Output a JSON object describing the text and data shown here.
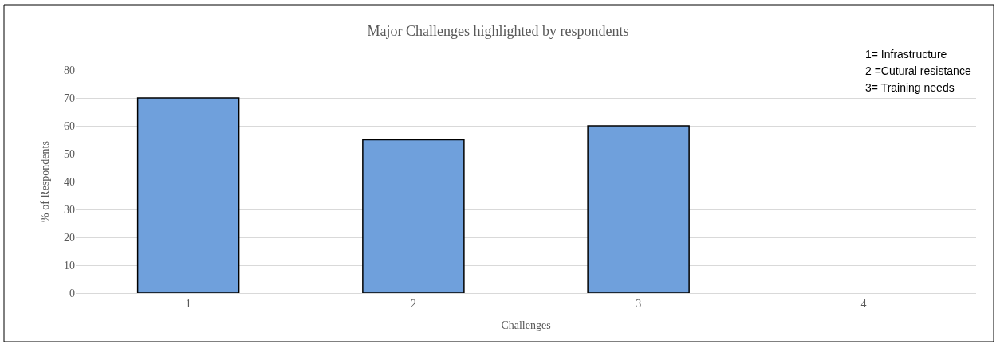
{
  "chart_data": {
    "type": "bar",
    "title": "Major Challenges highlighted by respondents",
    "xlabel": "Challenges",
    "ylabel": "% of Respondents",
    "categories": [
      "1",
      "2",
      "3",
      "4"
    ],
    "values": [
      70,
      55,
      60,
      null
    ],
    "color": "#6fa0dc",
    "ylim": [
      0,
      80
    ],
    "yticks": [
      0,
      10,
      20,
      30,
      40,
      50,
      60,
      70,
      80
    ],
    "grid": "y",
    "annotations": [
      "1= Infrastructure",
      "2 =Cutural resistance",
      "3= Training needs"
    ]
  }
}
